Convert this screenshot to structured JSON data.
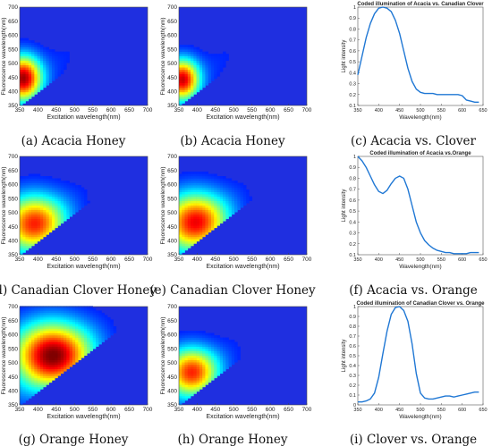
{
  "chart_data": [
    {
      "id": "a",
      "type": "heatmap",
      "caption": "(a) Acacia Honey",
      "xlabel": "Excitation wavelength(nm)",
      "ylabel": "Fluorescence wavelength(nm)",
      "xlim": [
        350,
        700
      ],
      "ylim": [
        350,
        700
      ],
      "xticks": [
        "350",
        "400",
        "450",
        "500",
        "550",
        "600",
        "650",
        "700"
      ],
      "yticks": [
        "350",
        "400",
        "450",
        "500",
        "550",
        "600",
        "650",
        "700"
      ],
      "peak": {
        "ex": 355,
        "em": 445,
        "intensity": 0.95,
        "sx": 35,
        "sy": 55
      }
    },
    {
      "id": "b",
      "type": "heatmap",
      "caption": "(b) Acacia Honey",
      "xlabel": "Excitation wavelength(nm)",
      "ylabel": "Fluorescence wavelength(nm)",
      "xlim": [
        350,
        700
      ],
      "ylim": [
        350,
        700
      ],
      "xticks": [
        "350",
        "400",
        "450",
        "500",
        "550",
        "600",
        "650",
        "700"
      ],
      "yticks": [
        "350",
        "400",
        "450",
        "500",
        "550",
        "600",
        "650",
        "700"
      ],
      "peak": {
        "ex": 355,
        "em": 440,
        "intensity": 0.9,
        "sx": 32,
        "sy": 50
      }
    },
    {
      "id": "c",
      "type": "line",
      "caption": "(c) Acacia vs. Clover",
      "title": "Coded illumination of Acacia vs. Canadian Clover",
      "xlabel": "Wavelength(nm)",
      "ylabel": "Light intensity",
      "xlim": [
        350,
        650
      ],
      "ylim": [
        0.1,
        1.0
      ],
      "xticks": [
        350,
        400,
        450,
        500,
        550,
        600,
        650
      ],
      "yticks": [
        0.1,
        0.2,
        0.3,
        0.4,
        0.5,
        0.6,
        0.7,
        0.8,
        0.9,
        1
      ],
      "x": [
        350,
        360,
        370,
        380,
        390,
        400,
        410,
        420,
        430,
        440,
        450,
        460,
        470,
        480,
        490,
        500,
        510,
        520,
        530,
        540,
        550,
        560,
        570,
        580,
        590,
        600,
        610,
        620,
        630,
        640
      ],
      "y": [
        0.38,
        0.55,
        0.72,
        0.85,
        0.94,
        0.99,
        1.0,
        0.99,
        0.96,
        0.88,
        0.76,
        0.6,
        0.44,
        0.32,
        0.25,
        0.22,
        0.21,
        0.21,
        0.21,
        0.2,
        0.2,
        0.2,
        0.2,
        0.2,
        0.2,
        0.19,
        0.15,
        0.14,
        0.13,
        0.13
      ]
    },
    {
      "id": "d",
      "type": "heatmap",
      "caption": "(d) Canadian Clover Honey",
      "xlabel": "Excitation wavelength(nm)",
      "ylabel": "Fluorescence wavelength(nm)",
      "xlim": [
        350,
        700
      ],
      "ylim": [
        350,
        700
      ],
      "xticks": [
        "350",
        "400",
        "450",
        "500",
        "550",
        "600",
        "650",
        "700"
      ],
      "yticks": [
        "350",
        "400",
        "450",
        "500",
        "550",
        "600",
        "650",
        "700"
      ],
      "peak": {
        "ex": 385,
        "em": 460,
        "intensity": 0.8,
        "sx": 60,
        "sy": 70
      }
    },
    {
      "id": "e",
      "type": "heatmap",
      "caption": "(e) Canadian Clover Honey",
      "xlabel": "Excitation wavelength(nm)",
      "ylabel": "Fluorescence wavelength(nm)",
      "xlim": [
        350,
        700
      ],
      "ylim": [
        350,
        700
      ],
      "xticks": [
        "350",
        "400",
        "450",
        "500",
        "550",
        "600",
        "650",
        "700"
      ],
      "yticks": [
        "350",
        "400",
        "450",
        "500",
        "550",
        "600",
        "650",
        "700"
      ],
      "peak": {
        "ex": 390,
        "em": 465,
        "intensity": 0.85,
        "sx": 62,
        "sy": 72
      }
    },
    {
      "id": "f",
      "type": "line",
      "caption": "(f) Acacia vs. Orange",
      "title": "Coded illumination of Acacia vs.Orange",
      "xlabel": "Wavelength(nm)",
      "ylabel": "Light intensity",
      "xlim": [
        350,
        650
      ],
      "ylim": [
        0.1,
        1.0
      ],
      "xticks": [
        350,
        400,
        450,
        500,
        550,
        600,
        650
      ],
      "yticks": [
        0.1,
        0.2,
        0.3,
        0.4,
        0.5,
        0.6,
        0.7,
        0.8,
        0.9,
        1
      ],
      "x": [
        350,
        360,
        370,
        380,
        390,
        400,
        410,
        420,
        430,
        440,
        450,
        460,
        470,
        480,
        490,
        500,
        510,
        520,
        530,
        540,
        550,
        560,
        570,
        580,
        590,
        600,
        610,
        620,
        630,
        640
      ],
      "y": [
        1.0,
        0.96,
        0.9,
        0.82,
        0.74,
        0.68,
        0.66,
        0.69,
        0.75,
        0.8,
        0.82,
        0.8,
        0.7,
        0.55,
        0.4,
        0.3,
        0.23,
        0.19,
        0.16,
        0.14,
        0.13,
        0.12,
        0.12,
        0.11,
        0.11,
        0.11,
        0.11,
        0.12,
        0.12,
        0.12
      ]
    },
    {
      "id": "g",
      "type": "heatmap",
      "caption": "(g) Orange Honey",
      "xlabel": "Excitation wavelength(nm)",
      "ylabel": "Fluorescence wavelength(nm)",
      "xlim": [
        350,
        700
      ],
      "ylim": [
        350,
        700
      ],
      "xticks": [
        "350",
        "400",
        "450",
        "500",
        "550",
        "600",
        "650",
        "700"
      ],
      "yticks": [
        "350",
        "400",
        "450",
        "500",
        "550",
        "600",
        "650",
        "700"
      ],
      "peak": {
        "ex": 435,
        "em": 525,
        "intensity": 1.0,
        "sx": 75,
        "sy": 80
      }
    },
    {
      "id": "h",
      "type": "heatmap",
      "caption": "(h) Orange Honey",
      "xlabel": "Excitation wavelength(nm)",
      "ylabel": "Fluorescence wavelength(nm)",
      "xlim": [
        350,
        700
      ],
      "ylim": [
        350,
        700
      ],
      "xticks": [
        "350",
        "400",
        "450",
        "500",
        "550",
        "600",
        "650",
        "700"
      ],
      "yticks": [
        "350",
        "400",
        "450",
        "500",
        "550",
        "600",
        "650",
        "700"
      ],
      "peak": {
        "ex": 380,
        "em": 465,
        "intensity": 0.8,
        "sx": 50,
        "sy": 60
      }
    },
    {
      "id": "i",
      "type": "line",
      "caption": "(i) Clover vs. Orange",
      "title": "Coded illumination of Canadian Clover vs. Orange",
      "xlabel": "Wavelength(nm)",
      "ylabel": "Light intensity",
      "xlim": [
        350,
        650
      ],
      "ylim": [
        0.0,
        1.0
      ],
      "xticks": [
        350,
        400,
        450,
        500,
        550,
        600,
        650
      ],
      "yticks": [
        0,
        0.1,
        0.2,
        0.3,
        0.4,
        0.5,
        0.6,
        0.7,
        0.8,
        0.9,
        1
      ],
      "x": [
        350,
        360,
        370,
        380,
        390,
        400,
        410,
        420,
        430,
        440,
        450,
        460,
        470,
        480,
        490,
        500,
        510,
        520,
        530,
        540,
        550,
        560,
        570,
        580,
        590,
        600,
        610,
        620,
        630,
        640
      ],
      "y": [
        0.03,
        0.03,
        0.04,
        0.06,
        0.12,
        0.28,
        0.52,
        0.75,
        0.92,
        0.99,
        1.0,
        0.96,
        0.85,
        0.62,
        0.32,
        0.12,
        0.07,
        0.06,
        0.06,
        0.07,
        0.08,
        0.09,
        0.09,
        0.08,
        0.09,
        0.1,
        0.11,
        0.12,
        0.13,
        0.13
      ]
    }
  ]
}
